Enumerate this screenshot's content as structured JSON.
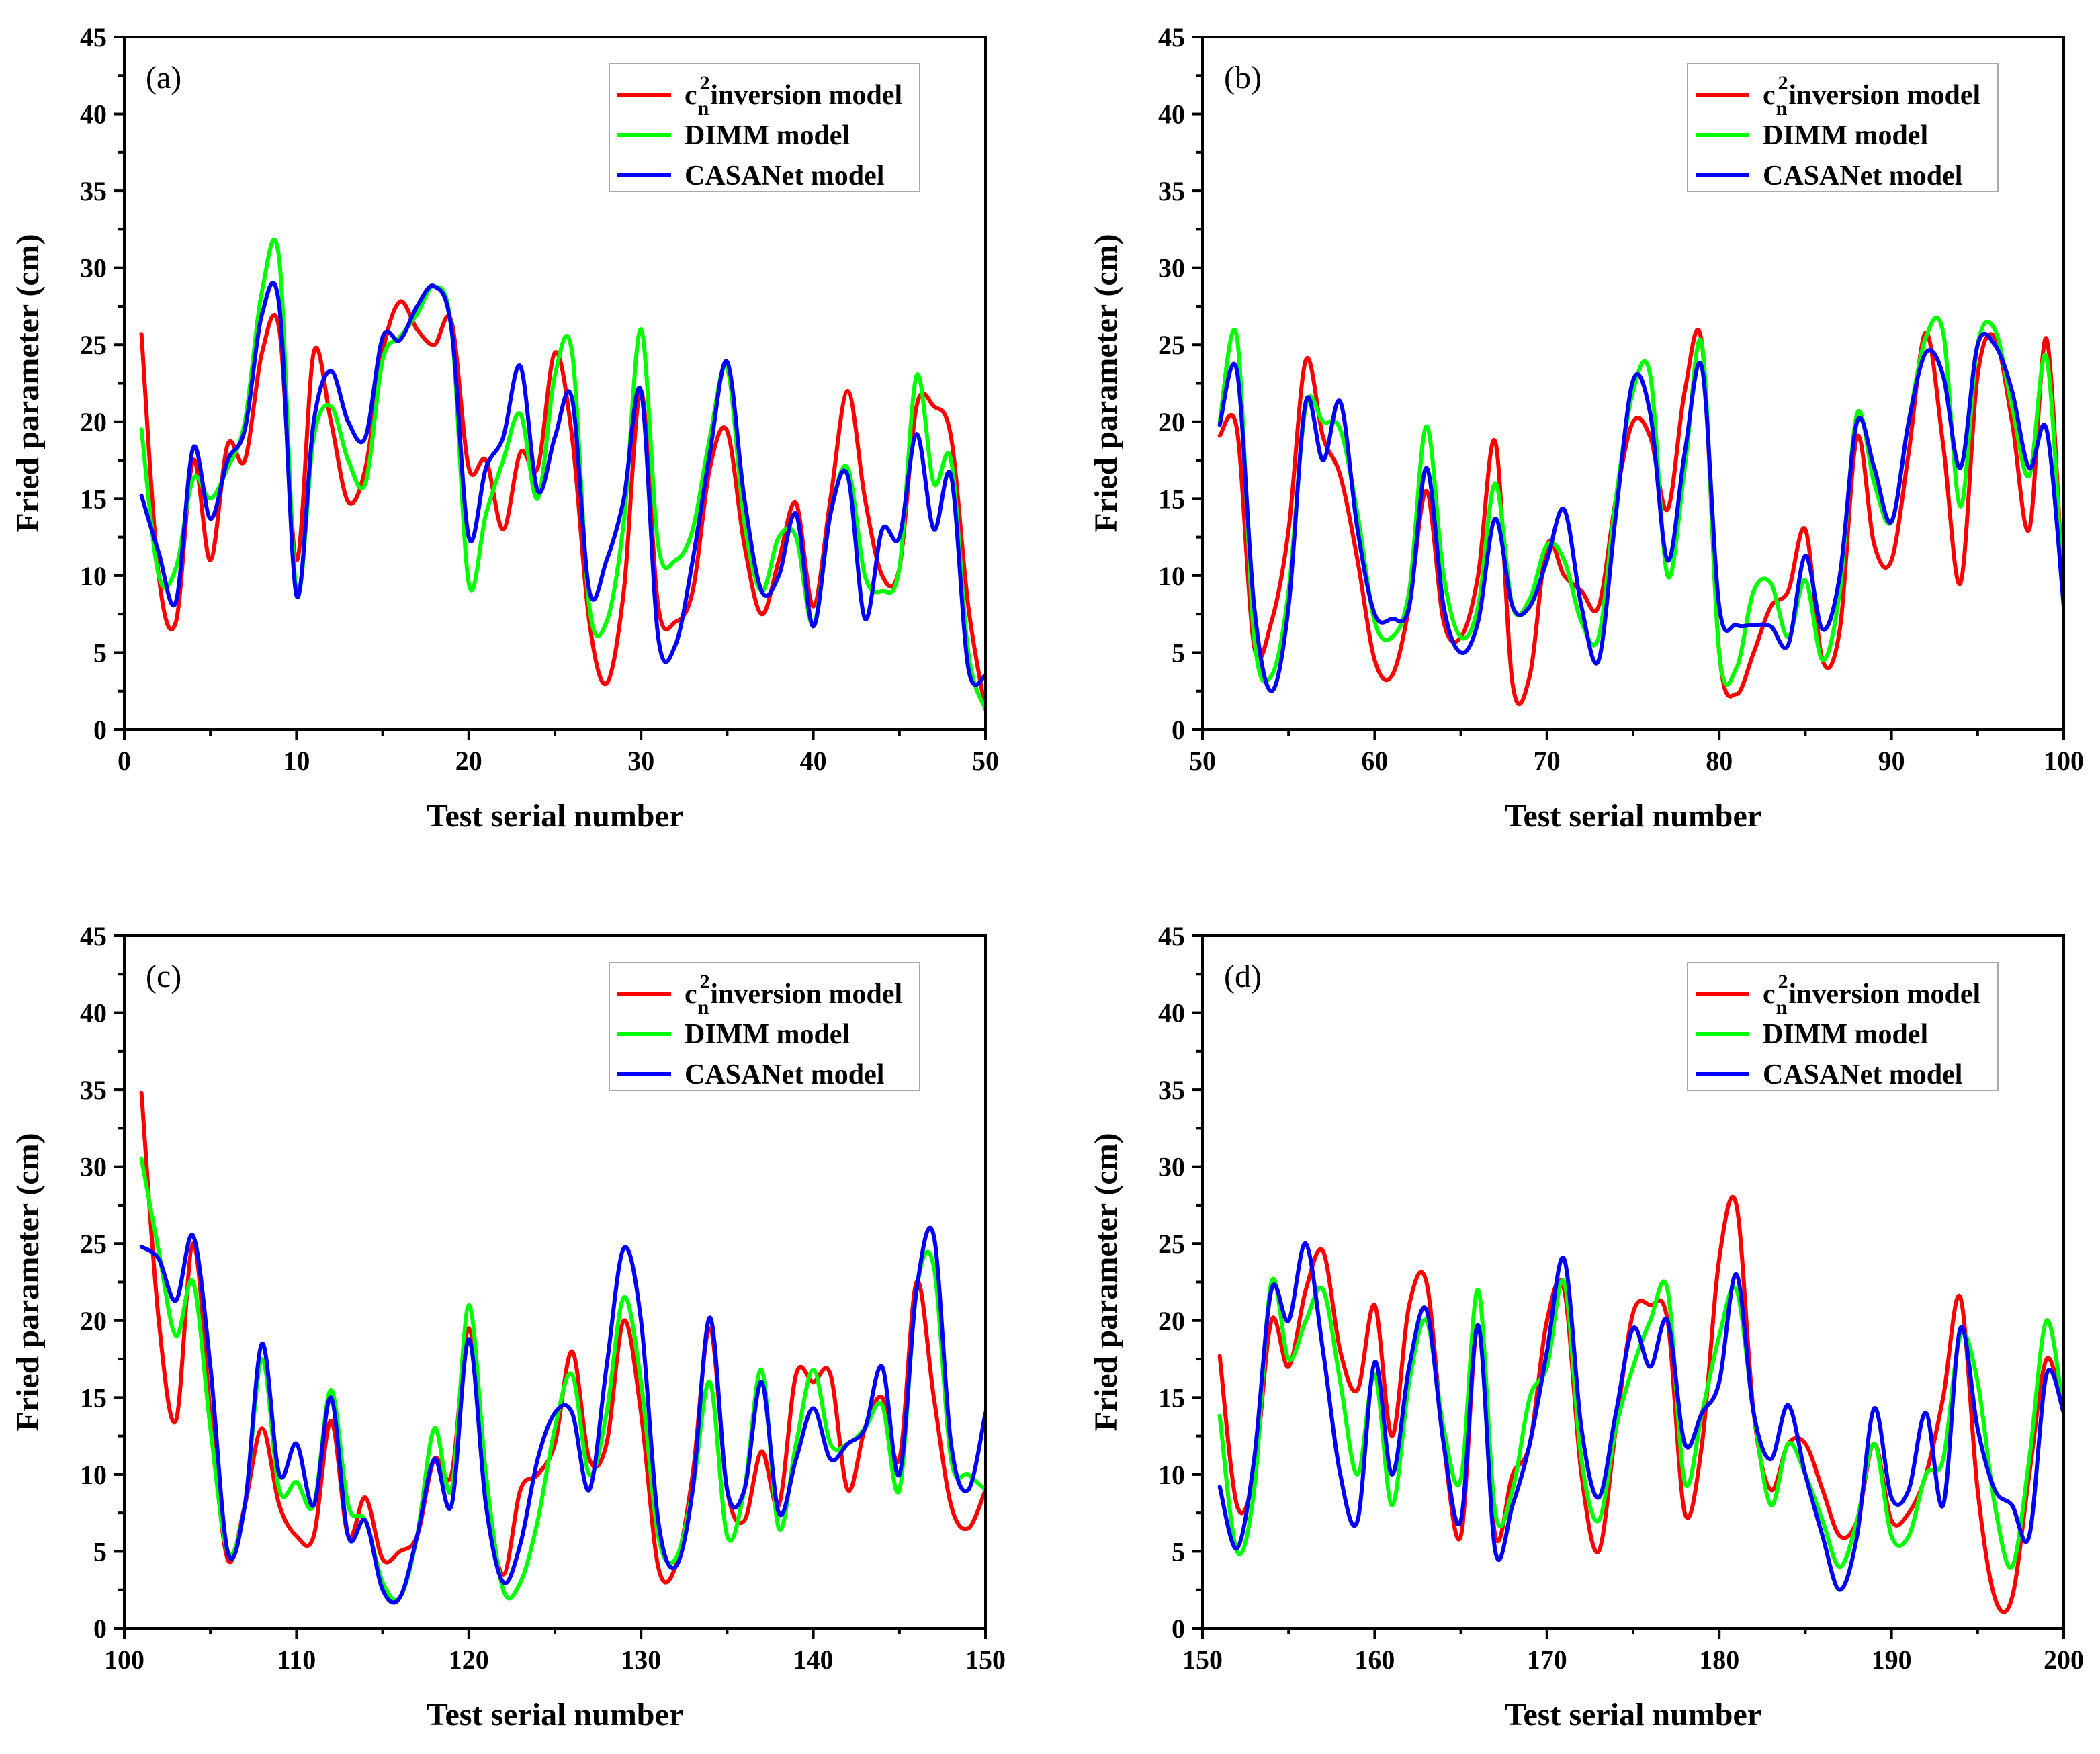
{
  "chart_data": [
    {
      "type": "line",
      "panel_label": "(a)",
      "xlabel": "Test serial number",
      "ylabel": "Fried parameter (cm)",
      "xlim": [
        0,
        50
      ],
      "ylim": [
        0,
        45
      ],
      "xticks": [
        0,
        10,
        20,
        30,
        40,
        50
      ],
      "yticks": [
        0,
        5,
        10,
        15,
        20,
        25,
        30,
        35,
        40,
        45
      ],
      "legend_position": "top-right",
      "x": [
        1,
        2,
        3,
        4,
        5,
        6,
        7,
        8,
        9,
        10,
        11,
        12,
        13,
        14,
        15,
        16,
        17,
        18,
        19,
        20,
        21,
        22,
        23,
        24,
        25,
        26,
        27,
        28,
        29,
        30,
        31,
        32,
        33,
        34,
        35,
        36,
        37,
        38,
        39,
        40,
        41,
        42,
        43,
        44,
        45,
        46,
        47,
        48,
        49,
        50
      ],
      "series": [
        {
          "name": "c",
          "name_sup": "2",
          "name_sub": "n",
          "name_rest": "inversion model",
          "color": "#ff0000",
          "values": [
            25.7,
            10,
            7,
            17.5,
            11,
            18.5,
            17.5,
            24.5,
            26,
            11,
            24.5,
            20,
            14.8,
            17,
            24.5,
            27.8,
            26,
            25,
            26.5,
            17,
            17.5,
            13,
            18,
            17,
            24.5,
            19,
            7,
            3,
            9,
            22,
            8,
            7,
            9,
            17,
            19.4,
            12,
            7.5,
            11,
            14.7,
            8,
            15,
            22,
            15,
            10,
            10.5,
            21,
            21,
            19,
            8,
            1.3
          ]
        },
        {
          "name": "DIMM model",
          "color": "#00ff00",
          "values": [
            19.5,
            10,
            10.5,
            16.3,
            15,
            17,
            20,
            28.5,
            30.5,
            9,
            19,
            21,
            17.5,
            16,
            24,
            25.5,
            27,
            28.8,
            26,
            9.5,
            14,
            17.5,
            20.5,
            15,
            23,
            24.5,
            8,
            7,
            13.5,
            26,
            12,
            11,
            13,
            19,
            23.5,
            13.5,
            9,
            12.5,
            12.5,
            6.8,
            14,
            17,
            10,
            9,
            10.5,
            23,
            16,
            17.5,
            5,
            1.3
          ]
        },
        {
          "name": "CASANet model",
          "color": "#0000ff",
          "values": [
            15.2,
            11.5,
            8.3,
            18.3,
            13.7,
            17.5,
            19.5,
            27,
            27.5,
            8.7,
            20,
            23.3,
            20,
            19,
            25.5,
            25.3,
            27.5,
            28.8,
            26,
            12.5,
            17,
            19,
            23.6,
            15.5,
            19,
            21.5,
            9,
            11,
            15,
            22,
            6,
            5.5,
            11,
            18,
            23.9,
            15,
            9,
            10,
            14,
            6.7,
            14,
            16.5,
            7.2,
            13,
            12.5,
            19.2,
            13,
            16.5,
            4,
            3.5
          ]
        }
      ]
    },
    {
      "type": "line",
      "panel_label": "(b)",
      "xlabel": "Test serial number",
      "ylabel": "Fried parameter (cm)",
      "xlim": [
        50,
        100
      ],
      "ylim": [
        0,
        45
      ],
      "xticks": [
        50,
        60,
        70,
        80,
        90,
        100
      ],
      "yticks": [
        0,
        5,
        10,
        15,
        20,
        25,
        30,
        35,
        40,
        45
      ],
      "legend_position": "top-right",
      "x": [
        51,
        52,
        53,
        54,
        55,
        56,
        57,
        58,
        59,
        60,
        61,
        62,
        63,
        64,
        65,
        66,
        67,
        68,
        69,
        70,
        71,
        72,
        73,
        74,
        75,
        76,
        77,
        78,
        79,
        80,
        81,
        82,
        83,
        84,
        85,
        86,
        87,
        88,
        89,
        90,
        91,
        92,
        93,
        94,
        95,
        96,
        97,
        98,
        99,
        100
      ],
      "series": [
        {
          "name": "c",
          "name_sup": "2",
          "name_sub": "n",
          "name_rest": "inversion model",
          "color": "#ff0000",
          "values": [
            19.1,
            19.5,
            5.4,
            7,
            13,
            24,
            19,
            16.5,
            11,
            4.5,
            3.5,
            8,
            15.5,
            7,
            6,
            10,
            18.7,
            3,
            3.5,
            12,
            10,
            9,
            8,
            15,
            20,
            19,
            14.3,
            22,
            25,
            5,
            2.3,
            5,
            8,
            9,
            13,
            4.5,
            6.5,
            19,
            12,
            11,
            18,
            25.8,
            18.5,
            9.5,
            23,
            25.5,
            20,
            13,
            25.4,
            8
          ]
        },
        {
          "name": "DIMM model",
          "color": "#00ff00",
          "values": [
            20,
            25.5,
            6,
            3.5,
            9,
            21,
            20,
            19.5,
            14,
            7,
            6,
            9,
            19.7,
            10,
            6,
            8,
            16,
            8,
            8.5,
            12,
            11,
            7,
            6,
            15,
            22,
            23,
            10,
            17,
            25,
            5,
            4,
            9,
            9.5,
            6,
            9.7,
            4.5,
            9,
            20.5,
            16,
            13.5,
            20,
            25.5,
            25.8,
            14.5,
            25,
            26,
            21,
            16.5,
            24.2,
            8
          ]
        },
        {
          "name": "CASANet model",
          "color": "#0000ff",
          "values": [
            19.8,
            23.3,
            8,
            2.5,
            8,
            21.3,
            17.5,
            21.3,
            13,
            7.5,
            7.2,
            8,
            17,
            8,
            5,
            7,
            13.7,
            8,
            8,
            11,
            14.3,
            8,
            4.5,
            14,
            22.7,
            20.5,
            11,
            18,
            23.5,
            8,
            6.8,
            6.8,
            6.7,
            5.5,
            11.3,
            6.5,
            10,
            20,
            17,
            13.5,
            20,
            24.5,
            23,
            17,
            25,
            25,
            22,
            17,
            19.5,
            8
          ]
        }
      ]
    },
    {
      "type": "line",
      "panel_label": "(c)",
      "xlabel": "Test serial number",
      "ylabel": "Fried parameter (cm)",
      "xlim": [
        100,
        150
      ],
      "ylim": [
        0,
        45
      ],
      "xticks": [
        100,
        110,
        120,
        130,
        140,
        150
      ],
      "yticks": [
        0,
        5,
        10,
        15,
        20,
        25,
        30,
        35,
        40,
        45
      ],
      "legend_position": "top-right",
      "x": [
        101,
        102,
        103,
        104,
        105,
        106,
        107,
        108,
        109,
        110,
        111,
        112,
        113,
        114,
        115,
        116,
        117,
        118,
        119,
        120,
        121,
        122,
        123,
        124,
        125,
        126,
        127,
        128,
        129,
        130,
        131,
        132,
        133,
        134,
        135,
        136,
        137,
        138,
        139,
        140,
        141,
        142,
        143,
        144,
        145,
        146,
        147,
        148,
        149,
        150
      ],
      "series": [
        {
          "name": "c",
          "name_sup": "2",
          "name_sub": "n",
          "name_rest": "inversion model",
          "color": "#ff0000",
          "values": [
            34.8,
            20,
            13.5,
            25,
            14,
            4.5,
            8,
            13,
            8,
            6,
            6,
            13.5,
            6,
            8.5,
            4.5,
            5,
            6,
            11,
            10,
            19.5,
            9,
            3.5,
            9,
            10,
            12,
            18,
            11,
            12,
            20,
            14,
            4,
            4,
            10,
            19.5,
            9,
            7,
            11.5,
            8,
            16.5,
            16,
            16.5,
            9,
            13,
            15,
            11,
            22.5,
            15,
            8,
            6.5,
            9
          ]
        },
        {
          "name": "DIMM model",
          "color": "#00ff00",
          "values": [
            30.5,
            24.5,
            19,
            22.5,
            13,
            5,
            8,
            17.5,
            9,
            9.5,
            8,
            15.5,
            8,
            7,
            3,
            2,
            6,
            13,
            9,
            21,
            10,
            2.5,
            3,
            7,
            13,
            16.5,
            10,
            14,
            21.5,
            16,
            6,
            4.5,
            9,
            16,
            6,
            9,
            16.8,
            6.5,
            12,
            16.8,
            12,
            12,
            13,
            14.5,
            9,
            22,
            23.5,
            11,
            10,
            9
          ]
        },
        {
          "name": "CASANet model",
          "color": "#0000ff",
          "values": [
            24.8,
            24,
            21.3,
            25.5,
            17,
            5,
            8,
            18.5,
            10,
            12,
            8,
            15,
            6,
            7,
            2.5,
            2,
            6,
            11,
            8,
            18.8,
            8,
            3,
            5.5,
            11,
            14,
            14,
            9,
            17,
            24.7,
            20,
            7,
            4,
            9,
            20.2,
            9,
            9,
            16,
            7.5,
            11,
            14.3,
            11,
            12,
            13,
            17,
            10,
            22,
            25.5,
            12,
            9,
            14
          ]
        }
      ]
    },
    {
      "type": "line",
      "panel_label": "(d)",
      "xlabel": "Test serial number",
      "ylabel": "Fried parameter (cm)",
      "xlim": [
        150,
        200
      ],
      "ylim": [
        0,
        45
      ],
      "xticks": [
        150,
        160,
        170,
        180,
        190,
        200
      ],
      "yticks": [
        0,
        5,
        10,
        15,
        20,
        25,
        30,
        35,
        40,
        45
      ],
      "legend_position": "top-right",
      "x": [
        151,
        152,
        153,
        154,
        155,
        156,
        157,
        158,
        159,
        160,
        161,
        162,
        163,
        164,
        165,
        166,
        167,
        168,
        169,
        170,
        171,
        172,
        173,
        174,
        175,
        176,
        177,
        178,
        179,
        180,
        181,
        182,
        183,
        184,
        185,
        186,
        187,
        188,
        189,
        190,
        191,
        192,
        193,
        194,
        195,
        196,
        197,
        198,
        199,
        200
      ],
      "series": [
        {
          "name": "c",
          "name_sup": "2",
          "name_sub": "n",
          "name_rest": "inversion model",
          "color": "#ff0000",
          "values": [
            17.7,
            8,
            10,
            20,
            17,
            22,
            24.5,
            18,
            15.5,
            21,
            12.5,
            21,
            22.5,
            12,
            6,
            19.7,
            6,
            10,
            12,
            20,
            22,
            10,
            5,
            13,
            20.5,
            21,
            20,
            7.5,
            12,
            24,
            27.5,
            14,
            9,
            12,
            12,
            9,
            6,
            7,
            12,
            7,
            7.5,
            10,
            15,
            21.5,
            9,
            2,
            2,
            10,
            17.5,
            14
          ]
        },
        {
          "name": "DIMM model",
          "color": "#00ff00",
          "values": [
            13.8,
            5,
            9,
            22.5,
            17.5,
            20,
            22,
            16,
            10,
            16.5,
            8,
            16,
            20,
            13,
            9.7,
            22,
            7.5,
            9,
            15,
            17,
            22.5,
            11,
            7,
            13,
            17,
            20,
            22,
            9.5,
            14,
            19,
            22,
            14,
            8,
            12,
            10,
            7,
            4,
            7,
            12,
            6,
            6,
            10,
            11,
            19,
            16,
            8,
            4,
            11,
            20,
            14
          ]
        },
        {
          "name": "CASANet model",
          "color": "#0000ff",
          "values": [
            9.2,
            5.2,
            11,
            22,
            20,
            25,
            18,
            10,
            7,
            17.3,
            10,
            17,
            20.7,
            12,
            7,
            19.7,
            5,
            8,
            12,
            18,
            24,
            13,
            8.5,
            14,
            19.5,
            17,
            20,
            12,
            14,
            16,
            23,
            14,
            11,
            14.5,
            10,
            6,
            2.5,
            6,
            14.3,
            8.5,
            9,
            14,
            8,
            19.5,
            13,
            9,
            8,
            6,
            16.5,
            14
          ]
        }
      ]
    }
  ]
}
